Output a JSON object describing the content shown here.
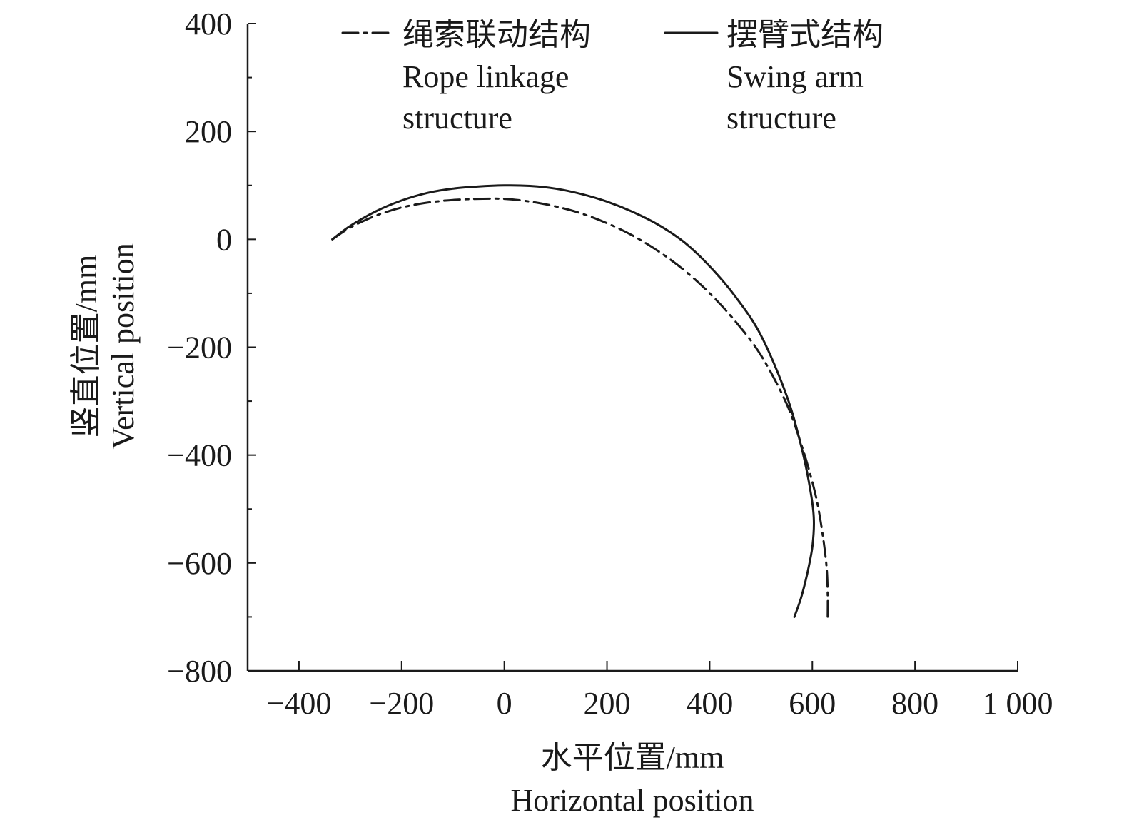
{
  "chart_data": {
    "type": "line",
    "title": "",
    "xlabel": [
      "水平位置/mm",
      "Horizontal position"
    ],
    "ylabel": [
      "竖直位置/mm",
      "Vertical position"
    ],
    "xlim": [
      -500,
      1000
    ],
    "ylim": [
      -800,
      400
    ],
    "x_ticks": [
      -400,
      -200,
      0,
      200,
      400,
      600,
      800,
      1000
    ],
    "x_tick_labels": [
      "−400",
      "−200",
      "0",
      "200",
      "400",
      "600",
      "800",
      "1 000"
    ],
    "y_ticks": [
      400,
      200,
      0,
      -200,
      -400,
      -600,
      -800
    ],
    "y_tick_labels": [
      "400",
      "200",
      "0",
      "−200",
      "−400",
      "−600",
      "−800"
    ],
    "grid": false,
    "legend_position": "top",
    "series": [
      {
        "name": [
          "绳索联动结构",
          "Rope linkage",
          "structure"
        ],
        "style": "dash-dot",
        "x": [
          -335,
          -300,
          -250,
          -200,
          -150,
          -100,
          -50,
          0,
          50,
          100,
          150,
          200,
          250,
          300,
          350,
          400,
          450,
          500,
          550,
          580,
          600,
          612,
          622,
          628,
          630,
          630
        ],
        "y": [
          0,
          22,
          44,
          59,
          68,
          73,
          75,
          75,
          70,
          61,
          48,
          30,
          7,
          -22,
          -57,
          -100,
          -152,
          -215,
          -305,
          -385,
          -450,
          -500,
          -560,
          -610,
          -660,
          -700
        ]
      },
      {
        "name": [
          "摆臂式结构",
          "Swing arm",
          "structure"
        ],
        "style": "solid",
        "x": [
          -335,
          -300,
          -250,
          -200,
          -150,
          -100,
          -50,
          0,
          50,
          100,
          150,
          200,
          250,
          300,
          350,
          400,
          450,
          500,
          550,
          580,
          597,
          603,
          600,
          590,
          578,
          565
        ],
        "y": [
          0,
          25,
          52,
          72,
          86,
          94,
          98,
          100,
          99,
          94,
          84,
          70,
          51,
          27,
          -5,
          -50,
          -106,
          -178,
          -290,
          -390,
          -470,
          -520,
          -570,
          -620,
          -665,
          -700
        ]
      }
    ]
  }
}
